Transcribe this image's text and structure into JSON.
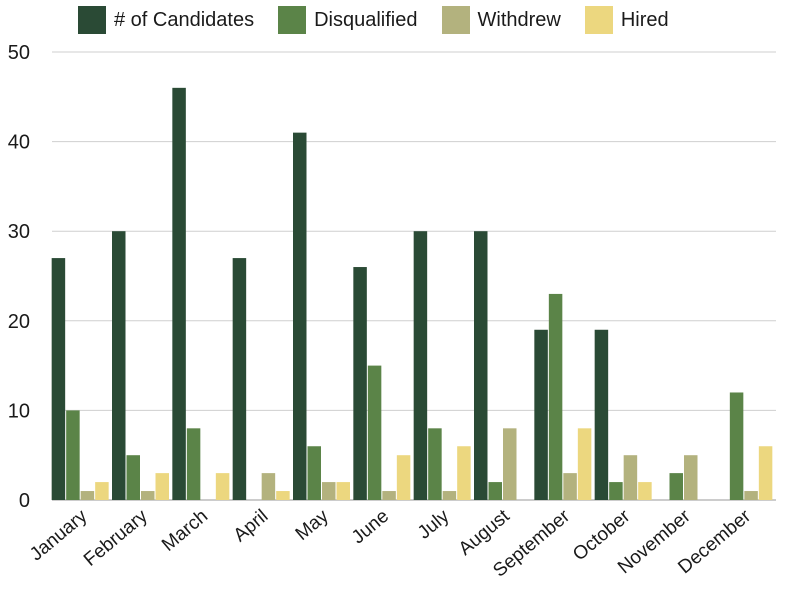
{
  "chart_data": {
    "type": "bar",
    "title": "",
    "xlabel": "",
    "ylabel": "",
    "ylim": [
      0,
      50
    ],
    "yticks": [
      0,
      10,
      20,
      30,
      40,
      50
    ],
    "grid": true,
    "legend_position": "top",
    "categories": [
      "January",
      "February",
      "March",
      "April",
      "May",
      "June",
      "July",
      "August",
      "September",
      "October",
      "November",
      "December"
    ],
    "series": [
      {
        "name": "# of Candidates",
        "color": "#2a4a35",
        "values": [
          27,
          30,
          46,
          27,
          41,
          26,
          30,
          30,
          19,
          19,
          0,
          0
        ]
      },
      {
        "name": "Disqualified",
        "color": "#5b8448",
        "values": [
          10,
          5,
          8,
          0,
          6,
          15,
          8,
          2,
          23,
          2,
          3,
          12
        ]
      },
      {
        "name": "Withdrew",
        "color": "#b3b27e",
        "values": [
          1,
          1,
          0,
          3,
          2,
          1,
          1,
          8,
          3,
          5,
          5,
          1
        ]
      },
      {
        "name": "Hired",
        "color": "#ecd77f",
        "values": [
          2,
          3,
          3,
          1,
          2,
          5,
          6,
          0,
          8,
          2,
          0,
          6
        ]
      }
    ]
  }
}
